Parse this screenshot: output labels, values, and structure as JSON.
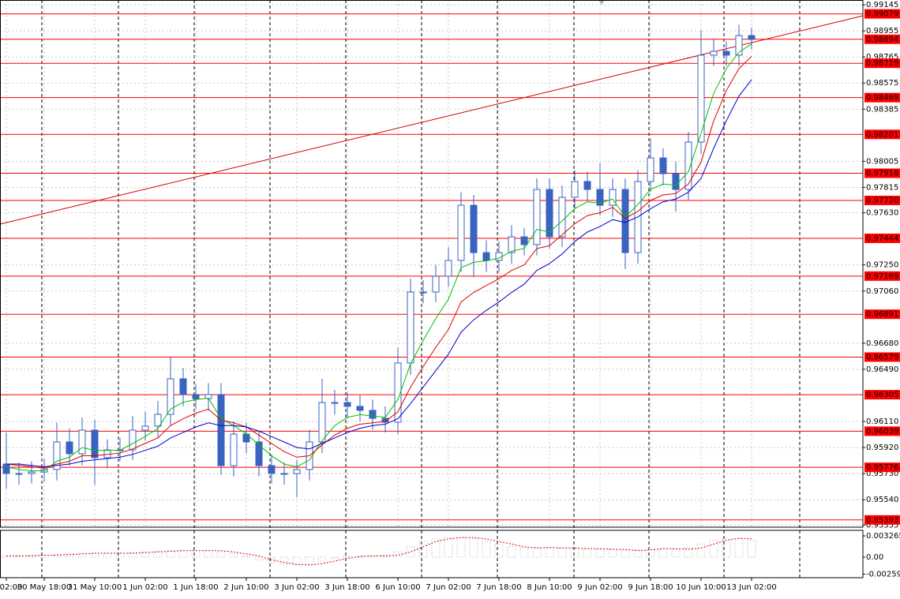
{
  "chart_data": [
    {
      "type": "candlestick",
      "categories": [
        "02:00",
        null,
        null,
        "30 May 18:00",
        null,
        null,
        null,
        "31 May 10:00",
        null,
        null,
        null,
        "1 Jun 02:00",
        null,
        null,
        null,
        "1 Jun 18:00",
        null,
        null,
        null,
        "2 Jun 10:00",
        null,
        null,
        null,
        "3 Jun 02:00",
        null,
        null,
        null,
        "3 Jun 18:00",
        null,
        null,
        null,
        "6 Jun 10:00",
        null,
        null,
        null,
        "7 Jun 02:00",
        null,
        null,
        null,
        "7 Jun 18:00",
        null,
        null,
        null,
        "8 Jun 10:00",
        null,
        null,
        null,
        "9 Jun 02:00",
        null,
        null,
        null,
        "9 Jun 18:00",
        null,
        null,
        null,
        "10 Jun 10:00",
        null,
        null,
        null,
        "13 Jun 02:00"
      ],
      "open": [
        0.958,
        0.95731,
        0.95731,
        0.95742,
        0.9576,
        0.95961,
        0.95875,
        0.96047,
        0.95846,
        0.95903,
        0.95903,
        0.96047,
        0.96076,
        0.96162,
        0.96421,
        0.96306,
        0.96277,
        0.96306,
        0.95788,
        0.96018,
        0.95961,
        0.95788,
        0.95731,
        0.95731,
        0.9576,
        0.95961,
        0.96248,
        0.96248,
        0.9622,
        0.96191,
        0.96133,
        0.96105,
        0.96536,
        0.97053,
        0.97053,
        0.97168,
        0.97283,
        0.97685,
        0.9734,
        0.97283,
        0.9734,
        0.97455,
        0.97398,
        0.978,
        0.97455,
        0.97743,
        0.97858,
        0.978,
        0.97685,
        0.978,
        0.9734,
        0.97858,
        0.9803,
        0.97915,
        0.978,
        0.98145,
        0.98778,
        0.98806,
        0.98778,
        0.98921
      ],
      "high": [
        0.9603,
        0.9581,
        0.9582,
        0.9584,
        0.961,
        0.9606,
        0.9614,
        0.9612,
        0.9598,
        0.9599,
        0.9615,
        0.9618,
        0.9626,
        0.9658,
        0.965,
        0.9638,
        0.9639,
        0.9639,
        0.9611,
        0.961,
        0.9604,
        0.9587,
        0.9581,
        0.9583,
        0.9605,
        0.9642,
        0.9634,
        0.9632,
        0.963,
        0.9627,
        0.9622,
        0.9665,
        0.9715,
        0.9714,
        0.9725,
        0.9738,
        0.9778,
        0.9776,
        0.9743,
        0.9742,
        0.9754,
        0.9752,
        0.9788,
        0.9788,
        0.9783,
        0.9794,
        0.9793,
        0.9799,
        0.9788,
        0.9788,
        0.9794,
        0.9817,
        0.981,
        0.98,
        0.9822,
        0.9896,
        0.989,
        0.9888,
        0.99,
        0.9898
      ],
      "low": [
        0.9562,
        0.9565,
        0.9566,
        0.9567,
        0.9568,
        0.9579,
        0.9579,
        0.9565,
        0.9577,
        0.9582,
        0.9583,
        0.9597,
        0.9599,
        0.9608,
        0.9622,
        0.962,
        0.9619,
        0.9572,
        0.9571,
        0.9588,
        0.9571,
        0.9566,
        0.9565,
        0.9556,
        0.9568,
        0.9588,
        0.9616,
        0.9614,
        0.9611,
        0.9605,
        0.9603,
        0.9602,
        0.9645,
        0.9697,
        0.9698,
        0.9709,
        0.972,
        0.9716,
        0.972,
        0.972,
        0.9726,
        0.9732,
        0.9732,
        0.9737,
        0.9738,
        0.9766,
        0.9772,
        0.9761,
        0.976,
        0.9722,
        0.9726,
        0.9778,
        0.9783,
        0.9764,
        0.9772,
        0.9806,
        0.987,
        0.987,
        0.987,
        0.9882
      ],
      "close": [
        0.95731,
        0.95731,
        0.95742,
        0.9576,
        0.95961,
        0.95875,
        0.96047,
        0.95846,
        0.95903,
        0.95903,
        0.96047,
        0.96076,
        0.96162,
        0.96421,
        0.96306,
        0.96277,
        0.96306,
        0.95788,
        0.96018,
        0.95961,
        0.95788,
        0.95731,
        0.95731,
        0.9576,
        0.95961,
        0.96248,
        0.96248,
        0.9622,
        0.96191,
        0.96133,
        0.96105,
        0.96536,
        0.97053,
        0.97053,
        0.97168,
        0.97283,
        0.97685,
        0.9734,
        0.97283,
        0.9734,
        0.97455,
        0.97398,
        0.978,
        0.97455,
        0.97743,
        0.97858,
        0.978,
        0.97685,
        0.978,
        0.9734,
        0.97858,
        0.9803,
        0.97915,
        0.978,
        0.98145,
        0.98778,
        0.98806,
        0.98778,
        0.98921,
        0.98893
      ],
      "color": "#3a62c0",
      "lines": [
        {
          "color": "#00c000",
          "values": [
            0.9578,
            0.9576,
            0.9575,
            0.9575,
            0.9582,
            0.9585,
            0.9592,
            0.959,
            0.959,
            0.959,
            0.9595,
            0.96,
            0.9606,
            0.962,
            0.9625,
            0.9627,
            0.9628,
            0.9613,
            0.9608,
            0.9602,
            0.9594,
            0.9586,
            0.958,
            0.9578,
            0.9583,
            0.9597,
            0.9608,
            0.9614,
            0.9616,
            0.9615,
            0.9614,
            0.9627,
            0.9653,
            0.967,
            0.9686,
            0.97,
            0.9723,
            0.9727,
            0.9728,
            0.973,
            0.9735,
            0.9737,
            0.9751,
            0.9749,
            0.9757,
            0.9766,
            0.9771,
            0.977,
            0.9773,
            0.976,
            0.9769,
            0.978,
            0.9784,
            0.9783,
            0.9793,
            0.9821,
            0.985,
            0.9868,
            0.988,
            0.9886
          ]
        },
        {
          "color": "#e00000",
          "values": [
            0.958,
            0.9579,
            0.9578,
            0.9577,
            0.958,
            0.9582,
            0.9586,
            0.9586,
            0.9587,
            0.9588,
            0.9591,
            0.9595,
            0.9599,
            0.9608,
            0.9613,
            0.9617,
            0.962,
            0.9612,
            0.961,
            0.9607,
            0.9601,
            0.9595,
            0.9589,
            0.9585,
            0.9586,
            0.9594,
            0.9601,
            0.9606,
            0.9609,
            0.961,
            0.9611,
            0.9618,
            0.9636,
            0.9651,
            0.9665,
            0.9678,
            0.9698,
            0.9705,
            0.971,
            0.9715,
            0.9721,
            0.9725,
            0.9737,
            0.9739,
            0.9747,
            0.9755,
            0.9761,
            0.9763,
            0.9767,
            0.9759,
            0.9764,
            0.9772,
            0.9776,
            0.9777,
            0.9784,
            0.98,
            0.983,
            0.9852,
            0.9868,
            0.9877
          ]
        },
        {
          "color": "#0000c8",
          "values": [
            0.958,
            0.958,
            0.9579,
            0.9578,
            0.9579,
            0.958,
            0.9582,
            0.9583,
            0.9584,
            0.9585,
            0.9587,
            0.959,
            0.9593,
            0.9599,
            0.9603,
            0.9607,
            0.961,
            0.9608,
            0.9608,
            0.9607,
            0.9604,
            0.96,
            0.9596,
            0.9592,
            0.9591,
            0.9595,
            0.9599,
            0.9603,
            0.9606,
            0.9608,
            0.9609,
            0.9613,
            0.9624,
            0.9636,
            0.9648,
            0.966,
            0.9676,
            0.9685,
            0.9692,
            0.9698,
            0.9705,
            0.9711,
            0.9721,
            0.9726,
            0.9733,
            0.9742,
            0.9749,
            0.9753,
            0.9758,
            0.9756,
            0.976,
            0.9766,
            0.9771,
            0.9773,
            0.9778,
            0.9788,
            0.981,
            0.983,
            0.9848,
            0.986
          ]
        }
      ],
      "levels": {
        "color": "#ff0000",
        "values": [
          0.99079,
          0.98894,
          0.98719,
          0.98469,
          0.98201,
          0.97918,
          {
            "value": 0.9772,
            "label": "0.97720"
          },
          0.97444,
          0.97169,
          0.96891,
          0.96579,
          0.96305,
          0.96039,
          0.95776,
          0.95393
        ]
      },
      "trendline": [
        0.97547,
        0.99065
      ],
      "ylim": [
        0.9534,
        0.9918
      ],
      "yticks": [
        0.99145,
        0.98955,
        0.98765,
        0.98575,
        0.98385,
        0.98005,
        0.97815,
        {
          "value": 0.9763,
          "label": "0.97630"
        },
        {
          "value": 0.9725,
          "label": "0.97250"
        },
        {
          "value": 0.9706,
          "label": "0.97060"
        },
        {
          "value": 0.9668,
          "label": "0.96680"
        },
        {
          "value": 0.9649,
          "label": "0.96490"
        },
        {
          "value": 0.9611,
          "label": "0.96110"
        },
        {
          "value": 0.9592,
          "label": "0.95920"
        },
        {
          "value": 0.9573,
          "label": "0.95730"
        },
        {
          "value": 0.9554,
          "label": "0.95540"
        },
        0.95355
      ],
      "grid": true
    },
    {
      "type": "bar",
      "values": [
        0.0002,
        0.0002,
        0.0003,
        0.0003,
        0.0004,
        0.0005,
        0.0006,
        0.0006,
        0.0006,
        0.0006,
        0.0007,
        0.0008,
        0.0009,
        0.001,
        0.001,
        0.001,
        0.001,
        0.0008,
        0.0005,
        0.0002,
        -0.0004,
        -0.0008,
        -0.0011,
        -0.0012,
        -0.001,
        -0.0006,
        -0.0002,
        0.0001,
        0.0002,
        0.0002,
        0.0003,
        0.0008,
        0.0016,
        0.0024,
        0.0028,
        0.003,
        0.003,
        0.0028,
        0.0024,
        0.002,
        0.0016,
        0.0014,
        0.0015,
        0.0014,
        0.0014,
        0.0013,
        0.0013,
        0.0012,
        0.0012,
        0.001,
        0.0011,
        0.0013,
        0.0013,
        0.0012,
        0.0014,
        0.002,
        0.0026,
        0.0029,
        0.0028,
        0.0026
      ],
      "color": "#b4b4b4",
      "signal": {
        "color": "#e00000",
        "values": [
          0.0002,
          0.0002,
          0.0002,
          0.0003,
          0.0003,
          0.0004,
          0.0005,
          0.0006,
          0.0006,
          0.0006,
          0.0006,
          0.0007,
          0.0008,
          0.0009,
          0.001,
          0.001,
          0.001,
          0.001,
          0.0008,
          0.0005,
          0.0002,
          -0.0004,
          -0.0008,
          -0.0011,
          -0.0012,
          -0.001,
          -0.0006,
          -0.0002,
          0.0001,
          0.0002,
          0.0002,
          0.0003,
          0.0008,
          0.0016,
          0.0024,
          0.0028,
          0.003,
          0.003,
          0.0028,
          0.0024,
          0.002,
          0.0016,
          0.0014,
          0.0015,
          0.0014,
          0.0014,
          0.0013,
          0.0013,
          0.0012,
          0.0012,
          0.001,
          0.0011,
          0.0013,
          0.0013,
          0.0012,
          0.0014,
          0.002,
          0.0026,
          0.0029,
          0.0028
        ]
      },
      "ylim": [
        -0.00314,
        0.00411
      ],
      "yticks": [
        0.003265,
        {
          "value": 0,
          "label": "0.00"
        },
        -0.002593
      ]
    }
  ]
}
